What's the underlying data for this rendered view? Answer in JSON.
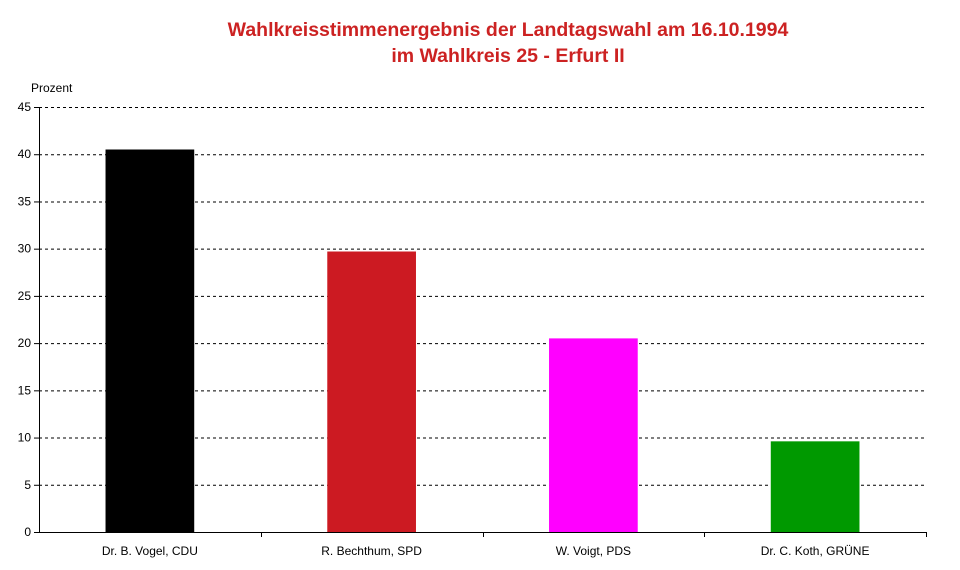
{
  "chart_data": {
    "type": "bar",
    "title": [
      "Wahlkreisstimmenergebnis der Landtagswahl am 16.10.1994",
      "im Wahlkreis 25 - Erfurt II"
    ],
    "ylabel": "Prozent",
    "xlabel": "",
    "ylim": [
      0,
      45
    ],
    "yticks": [
      0,
      5,
      10,
      15,
      20,
      25,
      30,
      35,
      40,
      45
    ],
    "grid": true,
    "legend": "none",
    "categories": [
      "Dr. B. Vogel, CDU",
      "R. Bechthum, SPD",
      "W. Voigt, PDS",
      "Dr. C. Koth, GRÜNE"
    ],
    "values": [
      40.5,
      29.7,
      20.5,
      9.6
    ],
    "colors": [
      "#000000",
      "#cc1a22",
      "#ff00ff",
      "#009900"
    ]
  }
}
